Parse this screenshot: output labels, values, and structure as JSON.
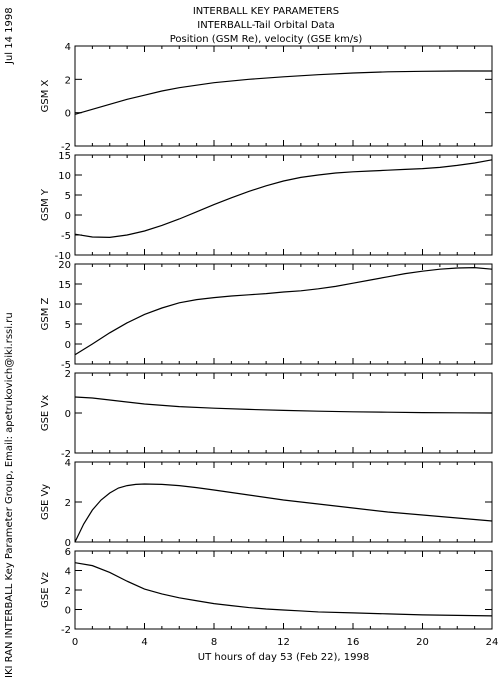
{
  "header": {
    "title_lines": [
      "INTERBALL KEY PARAMETERS",
      "INTERBALL-Tail Orbital Data",
      "Position (GSM Re), velocity (GSE km/s)"
    ]
  },
  "date_stamp": "Jul 14 1998",
  "side_credit": "IKI RAN INTERBALL Key Parameter Group, Email: apetrukovich@iki.rssi.ru",
  "colors": {
    "line": "#000000",
    "background": "#ffffff"
  },
  "chart_data": [
    {
      "type": "line",
      "ylabel": "GSM X",
      "xlabel": "",
      "xlim": [
        0,
        24
      ],
      "ylim": [
        -2,
        4
      ],
      "yticks": [
        -2,
        0,
        2,
        4
      ],
      "x": [
        0,
        1,
        2,
        3,
        4,
        5,
        6,
        8,
        10,
        12,
        14,
        16,
        18,
        20,
        22,
        24
      ],
      "series": [
        {
          "values": [
            -0.1,
            0.2,
            0.5,
            0.8,
            1.05,
            1.3,
            1.5,
            1.8,
            2.0,
            2.15,
            2.28,
            2.38,
            2.45,
            2.48,
            2.5,
            2.5
          ]
        }
      ]
    },
    {
      "type": "line",
      "ylabel": "GSM Y",
      "xlabel": "",
      "xlim": [
        0,
        24
      ],
      "ylim": [
        -10,
        15
      ],
      "yticks": [
        -10,
        -5,
        0,
        5,
        10,
        15
      ],
      "x": [
        0,
        1,
        2,
        3,
        4,
        5,
        6,
        7,
        8,
        9,
        10,
        11,
        12,
        13,
        14,
        15,
        16,
        17,
        18,
        19,
        20,
        21,
        22,
        23,
        24
      ],
      "series": [
        {
          "values": [
            -4.8,
            -5.5,
            -5.6,
            -5.0,
            -4.0,
            -2.6,
            -1.0,
            0.8,
            2.6,
            4.3,
            5.9,
            7.3,
            8.5,
            9.4,
            10.0,
            10.5,
            10.8,
            11.0,
            11.2,
            11.4,
            11.6,
            11.9,
            12.4,
            13.0,
            13.8
          ]
        }
      ]
    },
    {
      "type": "line",
      "ylabel": "GSM Z",
      "xlabel": "",
      "xlim": [
        0,
        24
      ],
      "ylim": [
        -5,
        20
      ],
      "yticks": [
        -5,
        0,
        5,
        10,
        15,
        20
      ],
      "x": [
        0,
        1,
        2,
        3,
        4,
        5,
        6,
        7,
        8,
        9,
        10,
        11,
        12,
        13,
        14,
        15,
        16,
        17,
        18,
        19,
        20,
        21,
        22,
        23,
        24
      ],
      "series": [
        {
          "values": [
            -2.7,
            0.0,
            2.8,
            5.3,
            7.4,
            9.0,
            10.3,
            11.1,
            11.6,
            12.0,
            12.3,
            12.6,
            13.0,
            13.3,
            13.8,
            14.4,
            15.2,
            16.0,
            16.8,
            17.6,
            18.2,
            18.7,
            19.0,
            19.1,
            18.7
          ]
        }
      ]
    },
    {
      "type": "line",
      "ylabel": "GSE Vx",
      "xlabel": "",
      "xlim": [
        0,
        24
      ],
      "ylim": [
        -2,
        2
      ],
      "yticks": [
        -2,
        0,
        2
      ],
      "x": [
        0,
        1,
        2,
        4,
        6,
        8,
        10,
        12,
        14,
        16,
        18,
        20,
        22,
        24
      ],
      "series": [
        {
          "values": [
            0.8,
            0.75,
            0.65,
            0.45,
            0.32,
            0.24,
            0.18,
            0.13,
            0.09,
            0.06,
            0.04,
            0.02,
            0.01,
            0.0
          ]
        }
      ]
    },
    {
      "type": "line",
      "ylabel": "GSE Vy",
      "xlabel": "",
      "xlim": [
        0,
        24
      ],
      "ylim": [
        0,
        4
      ],
      "yticks": [
        0,
        2,
        4
      ],
      "x": [
        0,
        0.5,
        1,
        1.5,
        2,
        2.5,
        3,
        3.5,
        4,
        5,
        6,
        7,
        8,
        10,
        12,
        14,
        16,
        18,
        20,
        22,
        24
      ],
      "series": [
        {
          "values": [
            0.0,
            0.9,
            1.6,
            2.1,
            2.45,
            2.7,
            2.82,
            2.88,
            2.9,
            2.88,
            2.82,
            2.72,
            2.6,
            2.35,
            2.1,
            1.9,
            1.7,
            1.5,
            1.35,
            1.2,
            1.05
          ]
        }
      ]
    },
    {
      "type": "line",
      "ylabel": "GSE Vz",
      "xlabel": "UT hours of day  53 (Feb 22), 1998",
      "xlim": [
        0,
        24
      ],
      "ylim": [
        -2,
        6
      ],
      "yticks": [
        -2,
        0,
        2,
        4,
        6
      ],
      "xticks": [
        0,
        4,
        8,
        12,
        16,
        20,
        24
      ],
      "x": [
        0,
        1,
        2,
        3,
        4,
        5,
        6,
        7,
        8,
        9,
        10,
        11,
        12,
        13,
        14,
        16,
        18,
        20,
        22,
        24
      ],
      "series": [
        {
          "values": [
            4.8,
            4.5,
            3.8,
            2.9,
            2.1,
            1.6,
            1.2,
            0.9,
            0.6,
            0.4,
            0.2,
            0.05,
            -0.05,
            -0.15,
            -0.25,
            -0.35,
            -0.45,
            -0.55,
            -0.6,
            -0.65
          ]
        }
      ]
    }
  ]
}
